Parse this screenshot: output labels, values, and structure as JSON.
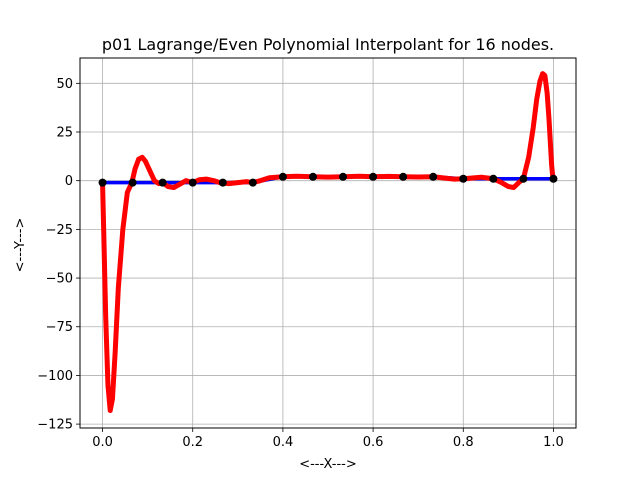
{
  "chart_data": {
    "type": "line",
    "title": "p01 Lagrange/Even Polynomial Interpolant for 16 nodes.",
    "xlabel": "<---X--->",
    "ylabel": "<---Y--->",
    "xlim": [
      -0.05,
      1.05
    ],
    "ylim": [
      -127,
      63
    ],
    "grid": true,
    "x_ticks": [
      0.0,
      0.2,
      0.4,
      0.6,
      0.8,
      1.0
    ],
    "x_tick_labels": [
      "0.0",
      "0.2",
      "0.4",
      "0.6",
      "0.8",
      "1.0"
    ],
    "y_ticks": [
      -125,
      -100,
      -75,
      -50,
      -25,
      0,
      25,
      50
    ],
    "y_tick_labels": [
      "−125",
      "−100",
      "−75",
      "−50",
      "−25",
      "0",
      "25",
      "50"
    ],
    "series": [
      {
        "color": "#0000ff",
        "style": "line",
        "x": [
          0.0,
          0.3333,
          0.4,
          0.7333,
          0.8,
          0.8667,
          1.0
        ],
        "y": [
          -1.0,
          -1.0,
          2.0,
          2.0,
          1.0,
          1.0,
          1.0
        ]
      },
      {
        "color": "#ff0000",
        "style": "line",
        "x": [
          0.0,
          0.003,
          0.007,
          0.012,
          0.017,
          0.022,
          0.028,
          0.035,
          0.045,
          0.055,
          0.065,
          0.072,
          0.08,
          0.088,
          0.095,
          0.105,
          0.115,
          0.125,
          0.1333,
          0.145,
          0.158,
          0.17,
          0.185,
          0.2,
          0.215,
          0.23,
          0.2467,
          0.26,
          0.28,
          0.3,
          0.32,
          0.3333,
          0.35,
          0.37,
          0.4,
          0.43,
          0.4667,
          0.5,
          0.5333,
          0.57,
          0.6,
          0.6333,
          0.6667,
          0.7,
          0.7333,
          0.76,
          0.78,
          0.8,
          0.82,
          0.84,
          0.8667,
          0.885,
          0.9,
          0.912,
          0.923,
          0.9333,
          0.945,
          0.955,
          0.963,
          0.97,
          0.976,
          0.981,
          0.986,
          0.99,
          0.993,
          0.996,
          0.998,
          1.0
        ],
        "y": [
          -1.0,
          -30,
          -70,
          -105,
          -118,
          -112,
          -88,
          -55,
          -25,
          -6,
          -1.0,
          6,
          11,
          12,
          10,
          5,
          0,
          -1.5,
          -1.0,
          -3,
          -3.5,
          -2,
          0,
          -1.0,
          0.5,
          0.8,
          0.0,
          -1.0,
          -1.5,
          -1.0,
          -0.5,
          -1.0,
          0.0,
          1.5,
          2.0,
          2.3,
          2.0,
          1.8,
          2.0,
          2.3,
          2.0,
          2.2,
          2.0,
          1.9,
          2.0,
          1.3,
          0.8,
          1.0,
          1.4,
          1.8,
          1.0,
          -1.0,
          -3.0,
          -3.5,
          -1.0,
          1.0,
          12,
          27,
          42,
          51,
          55,
          54,
          45,
          32,
          20,
          8,
          3,
          1.0
        ]
      },
      {
        "color": "#000000",
        "style": "markers",
        "x": [
          0.0,
          0.0667,
          0.1333,
          0.2,
          0.2667,
          0.3333,
          0.4,
          0.4667,
          0.5333,
          0.6,
          0.6667,
          0.7333,
          0.8,
          0.8667,
          0.9333,
          1.0
        ],
        "y": [
          -1,
          -1,
          -1,
          -1,
          -1,
          -1,
          2,
          2,
          2,
          2,
          2,
          2,
          1,
          1,
          1,
          1
        ]
      }
    ]
  }
}
